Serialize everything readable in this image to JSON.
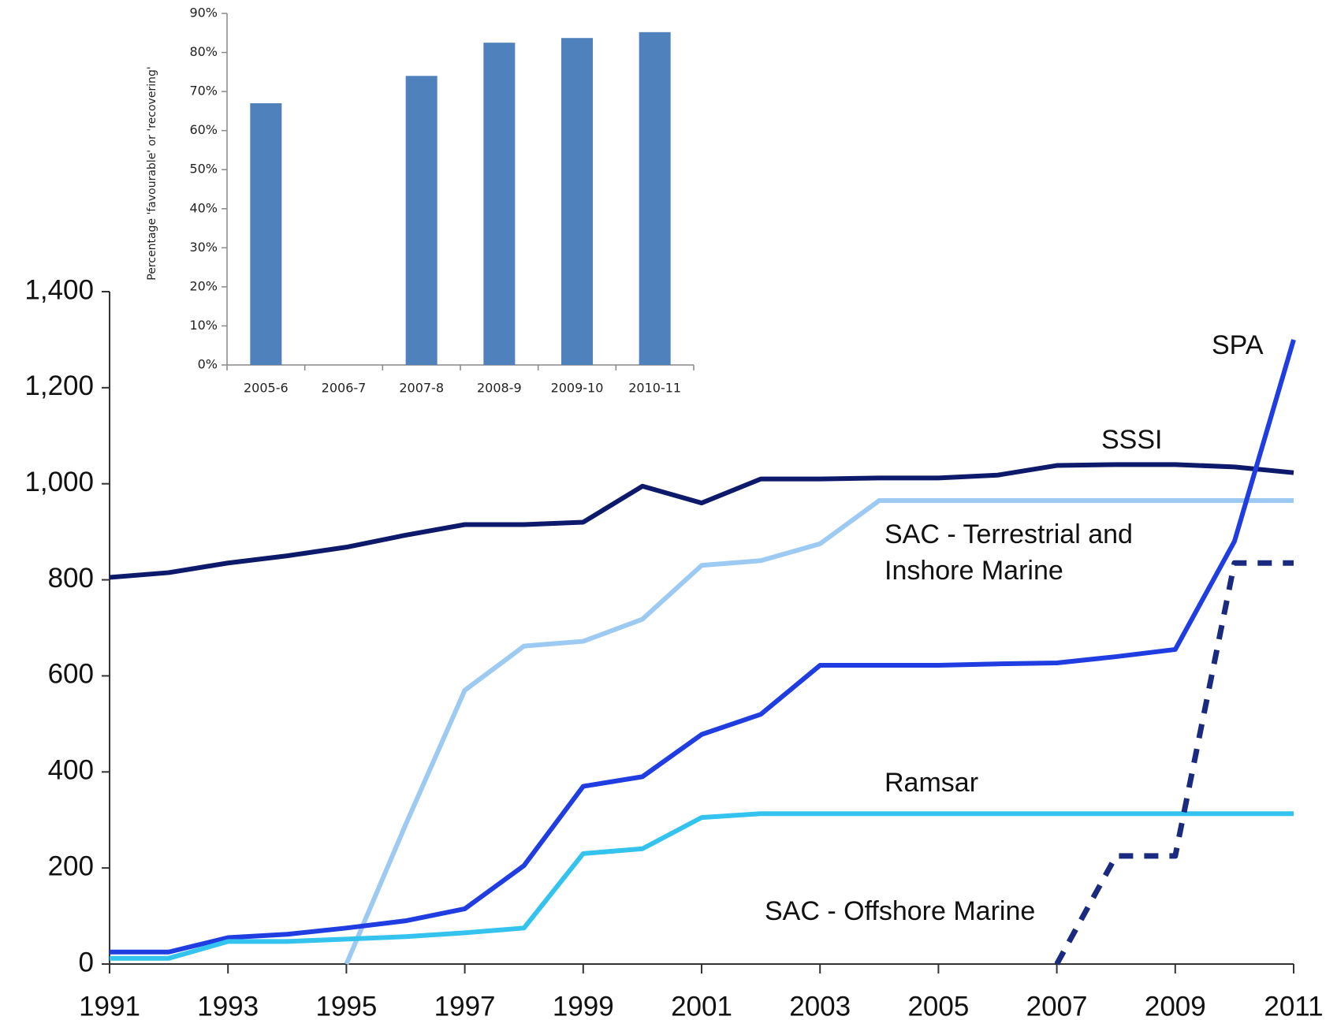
{
  "chart_data": [
    {
      "type": "line",
      "x": [
        1991,
        1992,
        1993,
        1994,
        1995,
        1996,
        1997,
        1998,
        1999,
        2000,
        2001,
        2002,
        2003,
        2004,
        2005,
        2006,
        2007,
        2008,
        2009,
        2010,
        2011
      ],
      "series": [
        {
          "name": "SSSI",
          "color": "#0d1a6b",
          "values": [
            805,
            815,
            835,
            850,
            868,
            893,
            915,
            915,
            920,
            995,
            960,
            1010,
            1010,
            1012,
            1012,
            1018,
            1038,
            1040,
            1040,
            1035,
            1023
          ]
        },
        {
          "name": "SAC - Terrestrial and Inshore Marine",
          "color": "#9ccaf2",
          "values": [
            null,
            null,
            null,
            null,
            0,
            290,
            570,
            662,
            672,
            718,
            830,
            840,
            875,
            965,
            965,
            965,
            965,
            965,
            965,
            965,
            965
          ]
        },
        {
          "name": "SPA",
          "color": "#1f3de0",
          "values": [
            25,
            25,
            55,
            62,
            75,
            90,
            115,
            205,
            370,
            390,
            478,
            520,
            622,
            622,
            622,
            625,
            627,
            640,
            655,
            880,
            1300
          ]
        },
        {
          "name": "Ramsar",
          "color": "#33c3ee",
          "values": [
            12,
            12,
            47,
            47,
            52,
            57,
            65,
            75,
            230,
            240,
            305,
            313,
            313,
            313,
            313,
            313,
            313,
            313,
            313,
            313,
            313
          ]
        },
        {
          "name": "SAC - Offshore Marine",
          "color": "#1a2a80",
          "dashed": true,
          "values": [
            null,
            null,
            null,
            null,
            null,
            null,
            null,
            null,
            null,
            null,
            null,
            null,
            null,
            null,
            null,
            null,
            0,
            225,
            225,
            835,
            835
          ]
        }
      ],
      "xlim": [
        1991,
        2011
      ],
      "xticks": [
        1991,
        1993,
        1995,
        1997,
        1999,
        2001,
        2003,
        2005,
        2007,
        2009,
        2011
      ],
      "ylim": [
        0,
        1400
      ],
      "yticks": [
        0,
        200,
        400,
        600,
        800,
        {
          "value": 1000,
          "label": "1,000"
        },
        {
          "value": 1200,
          "label": "1,200"
        },
        {
          "value": 1400,
          "label": "1,400"
        }
      ]
    },
    {
      "type": "bar",
      "y_label": "Percentage 'favourable' or 'recovering'",
      "categories": [
        "2005-6",
        "2006-7",
        "2007-8",
        "2008-9",
        "2009-10",
        "2010-11"
      ],
      "values": [
        67,
        null,
        74,
        82.5,
        83.7,
        85.2
      ],
      "color": "#4f81bd",
      "ylim": [
        0,
        90
      ],
      "yticks": [
        {
          "value": 0,
          "label": "0%"
        },
        {
          "value": 10,
          "label": "10%"
        },
        {
          "value": 20,
          "label": "20%"
        },
        {
          "value": 30,
          "label": "30%"
        },
        {
          "value": 40,
          "label": "40%"
        },
        {
          "value": 50,
          "label": "50%"
        },
        {
          "value": 60,
          "label": "60%"
        },
        {
          "value": 70,
          "label": "70%"
        },
        {
          "value": 80,
          "label": "80%"
        },
        {
          "value": 90,
          "label": "90%"
        }
      ]
    }
  ]
}
